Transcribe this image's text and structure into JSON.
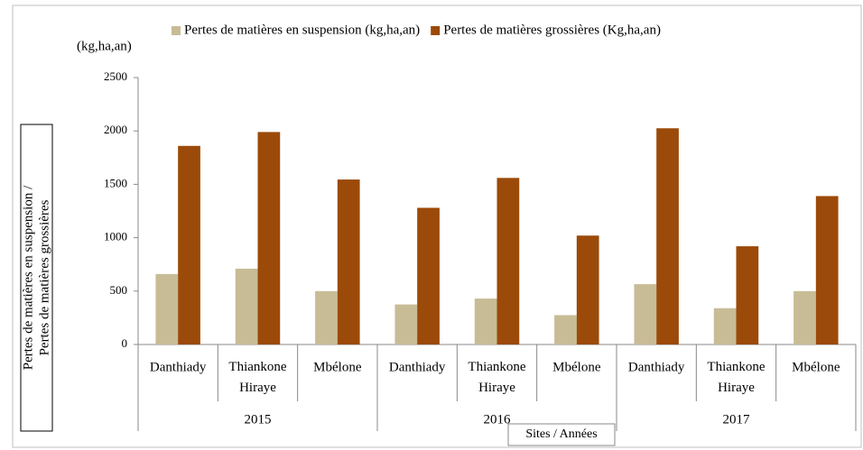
{
  "chart_data": {
    "type": "bar",
    "unit_label": "(kg,ha,an)",
    "y_label": [
      "Pertes de matières en suspension /",
      "Pertes de matières grossières"
    ],
    "x_label": "Sites / Années",
    "categories": [
      "Danthiady",
      "Thiankone Hiraye",
      "Mbélone",
      "Danthiady",
      "Thiankone Hiraye",
      "Mbélone",
      "Danthiady",
      "Thiankone Hiraye",
      "Mbélone"
    ],
    "groups": [
      "2015",
      "2016",
      "2017"
    ],
    "series": [
      {
        "name": "Pertes de matières en suspension (kg,ha,an)",
        "color": "#c8bc96",
        "values": [
          660,
          710,
          500,
          375,
          430,
          275,
          565,
          340,
          500
        ]
      },
      {
        "name": "Pertes de matières grossières (Kg,ha,an)",
        "color": "#9b4a09",
        "values": [
          1860,
          1990,
          1545,
          1280,
          1560,
          1020,
          2025,
          920,
          1390
        ]
      }
    ],
    "ylim": [
      0,
      2500
    ],
    "yticks": [
      0,
      500,
      1000,
      1500,
      2000,
      2500
    ],
    "grid": false
  }
}
